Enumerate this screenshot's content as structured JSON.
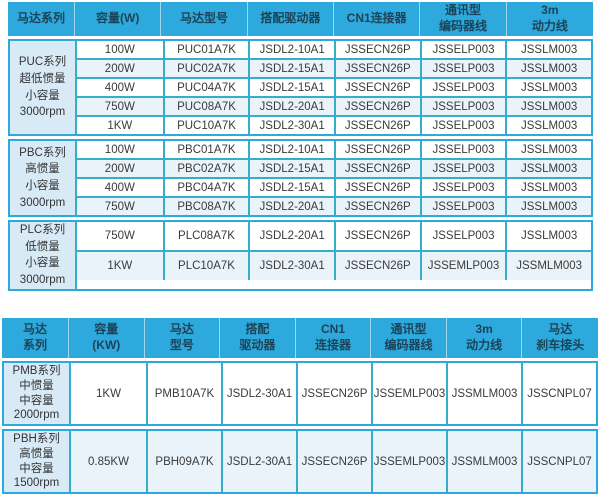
{
  "colors": {
    "header_bg": "#2EA9DD",
    "header_text": "#1C4458",
    "grid_line": "#35AECB",
    "series_cell_bg": "#D9EAF7",
    "alt_row_bg": "#EAF3FA",
    "cell_text": "#3A3A3A"
  },
  "table1": {
    "headers": [
      "马达系列",
      "容量(W)",
      "马达型号",
      "搭配驱动器",
      "CN1连接器",
      "通讯型\n编码器线",
      "3m\n动力线"
    ],
    "groups": [
      {
        "series": [
          "PUC系列",
          "超低惯量",
          "小容量",
          "3000rpm"
        ],
        "rows": [
          [
            "100W",
            "PUC01A7K",
            "JSDL2-10A1",
            "JSSECN26P",
            "JSSELP003",
            "JSSLM003"
          ],
          [
            "200W",
            "PUC02A7K",
            "JSDL2-15A1",
            "JSSECN26P",
            "JSSELP003",
            "JSSLM003"
          ],
          [
            "400W",
            "PUC04A7K",
            "JSDL2-15A1",
            "JSSECN26P",
            "JSSELP003",
            "JSSLM003"
          ],
          [
            "750W",
            "PUC08A7K",
            "JSDL2-20A1",
            "JSSECN26P",
            "JSSELP003",
            "JSSLM003"
          ],
          [
            "1KW",
            "PUC10A7K",
            "JSDL2-30A1",
            "JSSECN26P",
            "JSSELP003",
            "JSSLM003"
          ]
        ]
      },
      {
        "series": [
          "PBC系列",
          "高惯量",
          "小容量",
          "3000rpm"
        ],
        "rows": [
          [
            "100W",
            "PBC01A7K",
            "JSDL2-10A1",
            "JSSECN26P",
            "JSSELP003",
            "JSSLM003"
          ],
          [
            "200W",
            "PBC02A7K",
            "JSDL2-15A1",
            "JSSECN26P",
            "JSSELP003",
            "JSSLM003"
          ],
          [
            "400W",
            "PBC04A7K",
            "JSDL2-15A1",
            "JSSECN26P",
            "JSSELP003",
            "JSSLM003"
          ],
          [
            "750W",
            "PBC08A7K",
            "JSDL2-20A1",
            "JSSECN26P",
            "JSSELP003",
            "JSSLM003"
          ]
        ]
      },
      {
        "series": [
          "PLC系列",
          "低惯量",
          "小容量",
          "3000rpm"
        ],
        "rows": [
          [
            "750W",
            "PLC08A7K",
            "JSDL2-20A1",
            "JSSECN26P",
            "JSSELP003",
            "JSSLM003"
          ],
          [
            "1KW",
            "PLC10A7K",
            "JSDL2-30A1",
            "JSSECN26P",
            "JSSEMLP003",
            "JSSMLM003"
          ]
        ]
      }
    ]
  },
  "table2": {
    "headers": [
      "马达\n系列",
      "容量\n(KW)",
      "马达\n型号",
      "搭配\n驱动器",
      "CN1\n连接器",
      "通讯型\n编码器线",
      "3m\n动力线",
      "马达\n刹车接头"
    ],
    "groups": [
      {
        "series": [
          "PMB系列",
          "中惯量",
          "中容量",
          "2000rpm"
        ],
        "rows": [
          [
            "1KW",
            "PMB10A7K",
            "JSDL2-30A1",
            "JSSECN26P",
            "JSSEMLP003",
            "JSSMLM003",
            "JSSCNPL07"
          ]
        ]
      },
      {
        "series": [
          "PBH系列",
          "高惯量",
          "中容量",
          "1500rpm"
        ],
        "rows": [
          [
            "0.85KW",
            "PBH09A7K",
            "JSDL2-30A1",
            "JSSECN26P",
            "JSSEMLP003",
            "JSSMLM003",
            "JSSCNPL07"
          ]
        ]
      }
    ]
  }
}
